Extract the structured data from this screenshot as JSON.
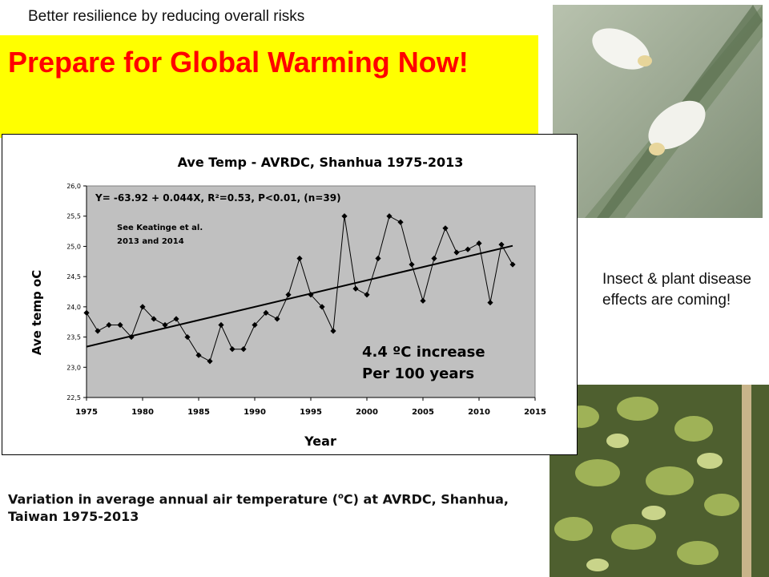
{
  "slide": {
    "subtitle": "Better resilience by reducing overall risks",
    "title": "Prepare for Global Warming Now!",
    "side_text": "Insect & plant disease effects are coming!",
    "caption_part1": "Variation in average annual air temperature (",
    "caption_sup": "o",
    "caption_part2": "C) at AVRDC, Shanhua, Taiwan 1975-2013"
  },
  "photos": {
    "top": "whitefly-photo",
    "bottom": "plant-disease-photo"
  },
  "colors": {
    "banner": "#ffff00",
    "title": "#ff0000",
    "plot_area": "#c0c0c0",
    "series": "#000000"
  },
  "chart_data": {
    "type": "line",
    "title": "Ave Temp - AVRDC, Shanhua 1975-2013",
    "xlabel": "Year",
    "ylabel": "Ave temp oC",
    "xlim": [
      1975,
      2015
    ],
    "ylim": [
      22.5,
      26.0
    ],
    "xticks": [
      "1975",
      "1980",
      "1985",
      "1990",
      "1995",
      "2000",
      "2005",
      "2010",
      "2015"
    ],
    "yticks": [
      "22,5",
      "23,0",
      "23,5",
      "24,0",
      "24,5",
      "25,0",
      "25,5",
      "26,0"
    ],
    "grid": false,
    "legend": "none",
    "equation": "Y= -63.92 + 0.044X, R²=0.53, P<0.01, (n=39)",
    "reference": [
      "See Keatinge et al.",
      "2013 and 2014"
    ],
    "increase_line1": "4.4 ºC increase",
    "increase_line2": "Per 100 years",
    "series": [
      {
        "x": [
          1975,
          1976,
          1977,
          1978,
          1979,
          1980,
          1981,
          1982,
          1983,
          1984,
          1985,
          1986,
          1987,
          1988,
          1989,
          1990,
          1991,
          1992,
          1993,
          1994,
          1995,
          1996,
          1997,
          1998,
          1999,
          2000,
          2001,
          2002,
          2003,
          2004,
          2005,
          2006,
          2007,
          2008,
          2009,
          2010,
          2011,
          2012,
          2013
        ],
        "y": [
          23.9,
          23.6,
          23.7,
          23.7,
          23.5,
          24.0,
          23.8,
          23.7,
          23.8,
          23.5,
          23.2,
          23.1,
          23.7,
          23.3,
          23.3,
          23.7,
          23.9,
          23.8,
          24.2,
          24.8,
          24.2,
          24.0,
          23.6,
          25.5,
          24.3,
          24.2,
          24.8,
          25.5,
          25.4,
          24.7,
          24.1,
          24.8,
          25.3,
          24.9,
          24.95,
          25.05,
          24.07,
          25.03,
          24.7
        ]
      }
    ],
    "trendline": {
      "x": [
        1975,
        2013
      ],
      "y": [
        23.34,
        25.01
      ]
    }
  }
}
